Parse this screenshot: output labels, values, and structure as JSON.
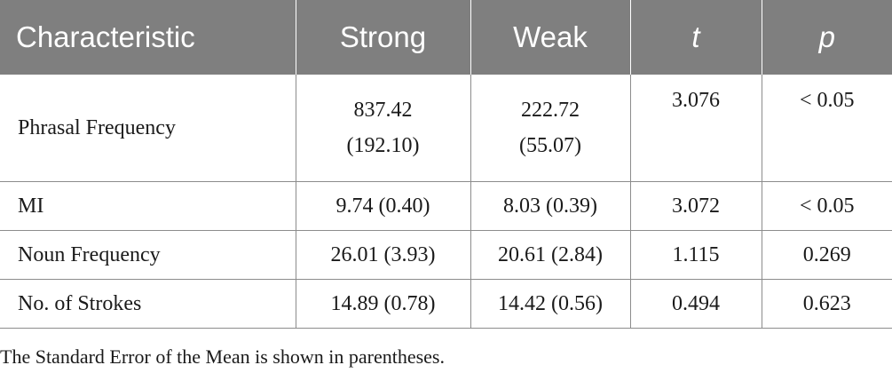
{
  "table": {
    "headers": [
      "Characteristic",
      "Strong",
      "Weak",
      "t",
      "p"
    ],
    "rows": [
      {
        "label": "Phrasal Frequency",
        "strong_mean": "837.42",
        "strong_se": "(192.10)",
        "weak_mean": "222.72",
        "weak_se": "(55.07)",
        "t": "3.076",
        "p": "< 0.05"
      },
      {
        "label": "MI",
        "strong": "9.74 (0.40)",
        "weak": "8.03 (0.39)",
        "t": "3.072",
        "p": "< 0.05"
      },
      {
        "label": "Noun Frequency",
        "strong": "26.01 (3.93)",
        "weak": "20.61 (2.84)",
        "t": "1.115",
        "p": "0.269"
      },
      {
        "label": "No. of Strokes",
        "strong": "14.89 (0.78)",
        "weak": "14.42 (0.56)",
        "t": "0.494",
        "p": "0.623"
      }
    ]
  },
  "footnote": "The Standard Error of the Mean is shown in parentheses.",
  "colors": {
    "header_bg": "#7f7f7f",
    "header_text": "#ffffff",
    "grid": "#8c8c8c"
  }
}
